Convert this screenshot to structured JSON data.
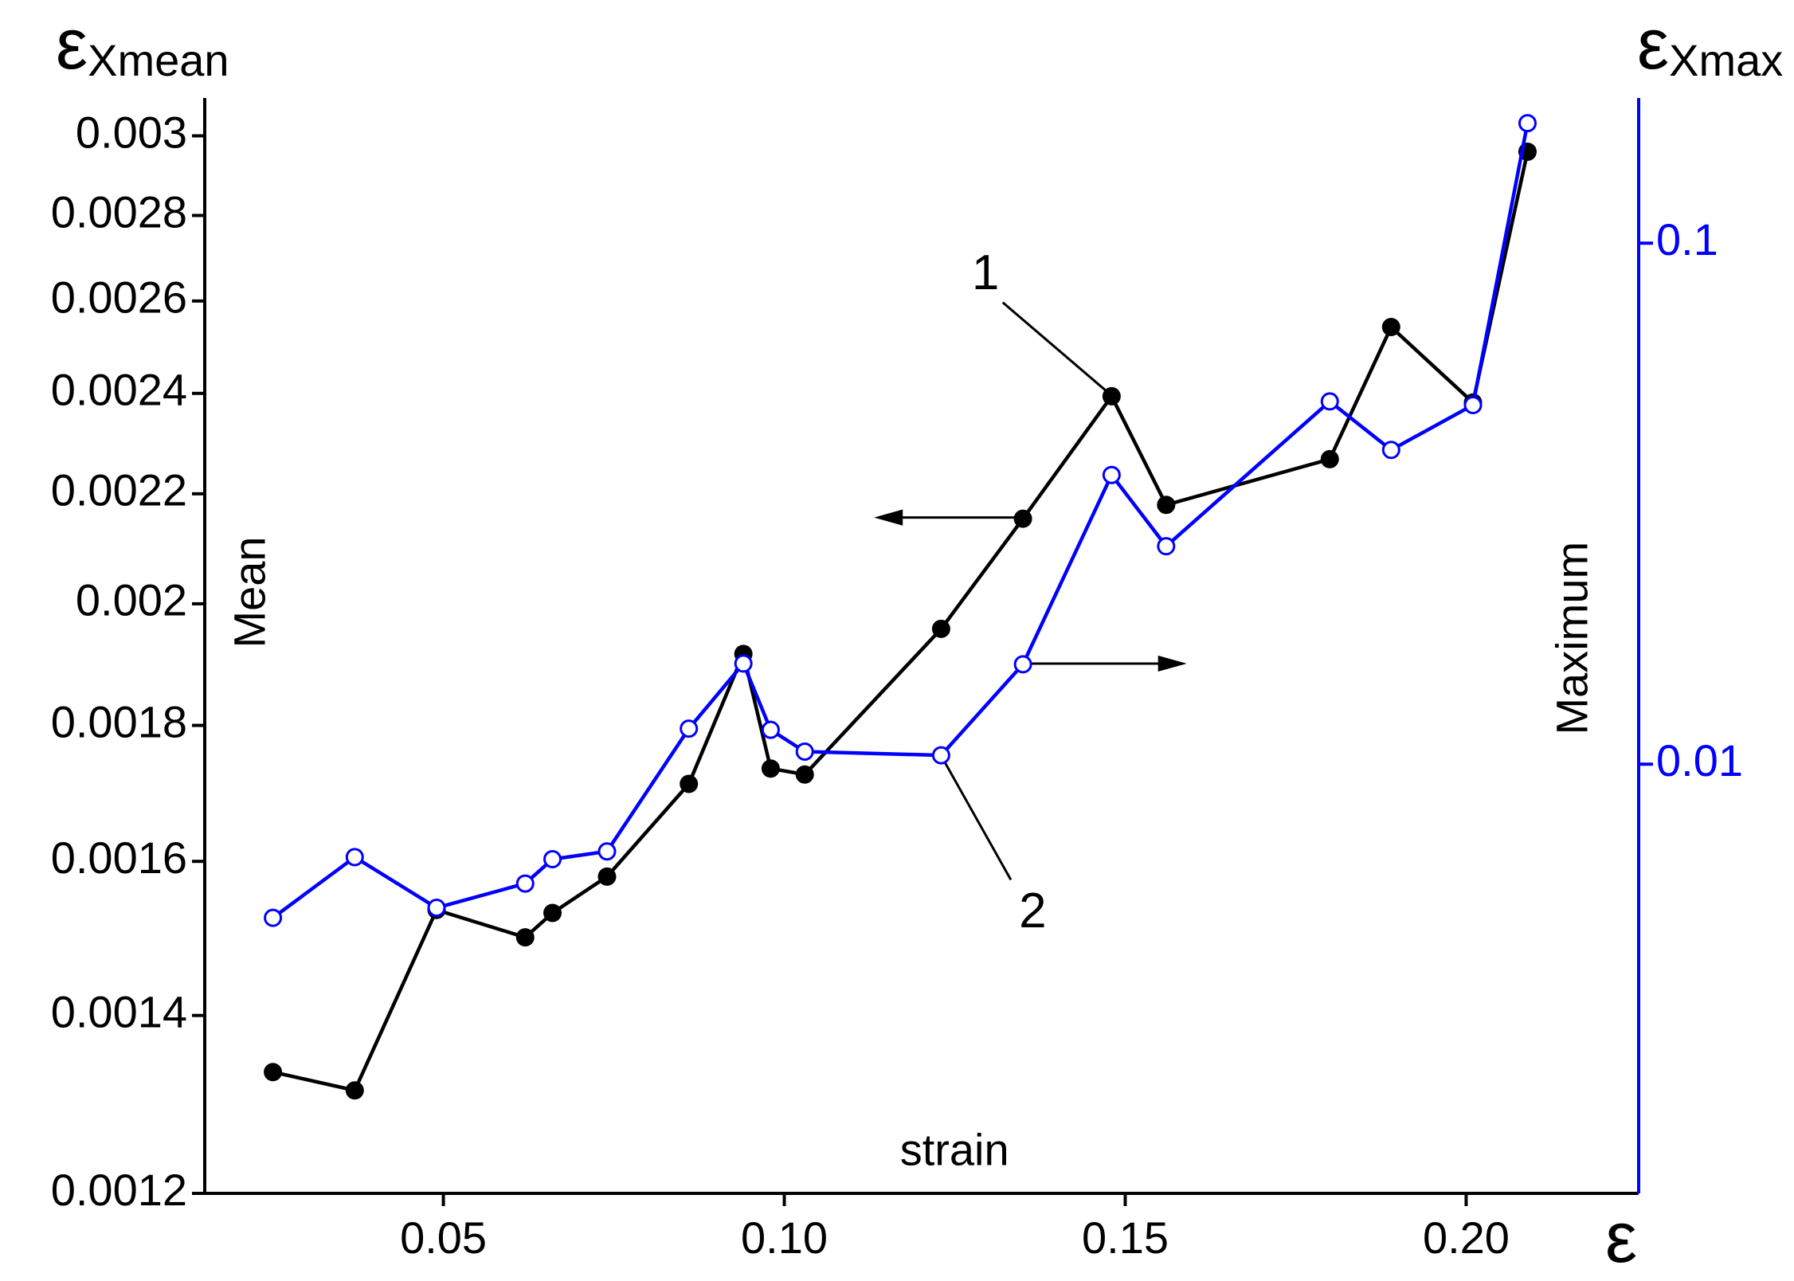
{
  "chart_data": {
    "type": "line",
    "y_label": {
      "symbol": "ε",
      "subscript": "Xmean"
    },
    "y2_label": {
      "symbol": "ε",
      "subscript": "Xmax"
    },
    "x_label": "ε",
    "annotations": [
      "1",
      "2",
      "strain"
    ],
    "x": [
      0.025,
      0.037,
      0.049,
      0.062,
      0.066,
      0.074,
      0.086,
      0.094,
      0.098,
      0.103,
      0.123,
      0.135,
      0.148,
      0.156,
      0.18,
      0.189,
      0.201,
      0.209
    ],
    "series": [
      {
        "name": "Mean",
        "color": "#000000",
        "marker": "filled",
        "axis": "y",
        "values": [
          0.001333,
          0.001312,
          0.001534,
          0.001498,
          0.00153,
          0.001579,
          0.001711,
          0.001915,
          0.001734,
          0.001725,
          0.001957,
          0.002153,
          0.002394,
          0.002179,
          0.002267,
          0.002542,
          0.002381,
          0.002959
        ]
      },
      {
        "name": "Maximum",
        "color": "#0000ff",
        "marker": "open",
        "axis": "y2",
        "values": [
          0.00507,
          0.00663,
          0.0053,
          0.0059,
          0.00657,
          0.0068,
          0.0117,
          0.0156,
          0.01164,
          0.01057,
          0.0104,
          0.01555,
          0.0359,
          0.0262,
          0.0497,
          0.0401,
          0.0489,
          0.17
        ]
      }
    ],
    "xlim": [
      0.015,
      0.2253
    ],
    "xticks": [
      0.05,
      {
        "value": 0.1,
        "label": "0.10"
      },
      0.15,
      {
        "value": 0.2,
        "label": "0.20"
      }
    ],
    "ylim": [
      0.0012,
      0.0031
    ],
    "yscale": "log",
    "yticks": [
      0.0012,
      0.0014,
      0.0016,
      0.0018,
      0.002,
      0.0022,
      0.0024,
      0.0026,
      0.0028,
      0.003
    ],
    "y2lim": [
      0.0015,
      0.19
    ],
    "y2scale": "log",
    "y2ticks": [
      0.01,
      0.1
    ],
    "y2color": "#0000ff"
  }
}
